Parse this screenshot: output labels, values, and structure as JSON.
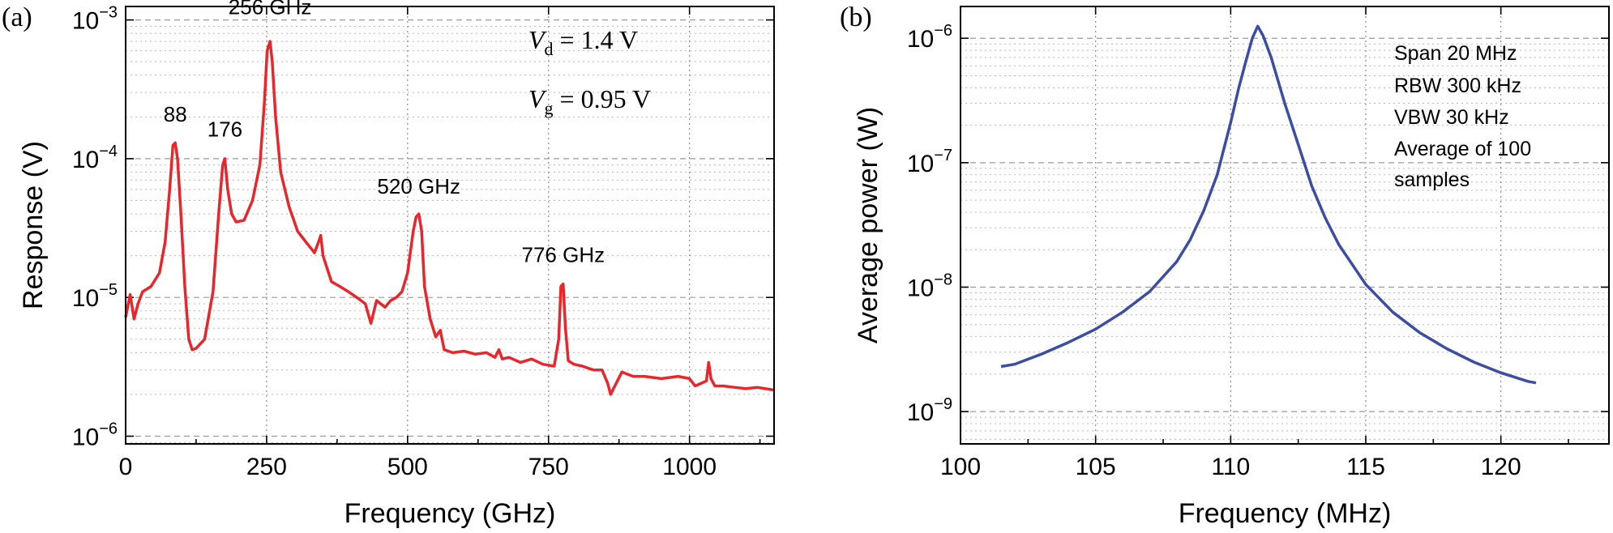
{
  "chart_data": [
    {
      "panel": "(a)",
      "type": "line",
      "title": "",
      "xlabel": "Frequency (GHz)",
      "ylabel": "Response (V)",
      "yscale": "log",
      "xlim": [
        0,
        1150
      ],
      "ylim": [
        8.8e-07,
        0.00125
      ],
      "x_ticks": [
        0,
        250,
        500,
        750,
        1000
      ],
      "x_tick_labels": [
        "0",
        "250",
        "500",
        "750",
        "1000"
      ],
      "y_ticks": [
        1e-06,
        1e-05,
        0.0001,
        0.001
      ],
      "y_tick_labels": [
        {
          "base": "10",
          "exp": "−6"
        },
        {
          "base": "10",
          "exp": "−5"
        },
        {
          "base": "10",
          "exp": "−4"
        },
        {
          "base": "10",
          "exp": "−3"
        }
      ],
      "color": "#e8262b",
      "series": [
        {
          "name": "Response",
          "x": [
            0,
            8,
            15,
            22,
            30,
            45,
            60,
            70,
            78,
            84,
            88,
            92,
            98,
            105,
            112,
            118,
            125,
            140,
            155,
            165,
            172,
            176,
            181,
            188,
            196,
            210,
            225,
            238,
            246,
            251,
            256,
            260,
            266,
            275,
            290,
            305,
            320,
            335,
            342,
            346,
            350,
            365,
            380,
            395,
            410,
            425,
            435,
            445,
            460,
            470,
            480,
            490,
            500,
            510,
            515,
            520,
            525,
            530,
            540,
            550,
            558,
            565,
            580,
            600,
            620,
            640,
            655,
            662,
            668,
            680,
            700,
            720,
            740,
            760,
            768,
            772,
            776,
            780,
            785,
            795,
            810,
            830,
            845,
            855,
            860,
            880,
            900,
            920,
            950,
            980,
            1000,
            1010,
            1020,
            1030,
            1034,
            1038,
            1045,
            1060,
            1080,
            1100,
            1120,
            1150
          ],
          "y": [
            7.2e-06,
            1.05e-05,
            7e-06,
            9e-06,
            1.1e-05,
            1.2e-05,
            1.5e-05,
            2.5e-05,
            6e-05,
            0.000125,
            0.00013,
            0.0001,
            4e-05,
            1.2e-05,
            5e-06,
            4.2e-06,
            4.3e-06,
            5e-06,
            1.1e-05,
            4e-05,
            9e-05,
            0.0001,
            6e-05,
            4e-05,
            3.5e-05,
            3.6e-05,
            5e-05,
            9e-05,
            0.00025,
            0.0006,
            0.0007,
            0.0005,
            0.0002,
            8e-05,
            4.5e-05,
            3e-05,
            2.5e-05,
            2.1e-05,
            2.5e-05,
            2.8e-05,
            2e-05,
            1.3e-05,
            1.2e-05,
            1.1e-05,
            1e-05,
            9e-06,
            6.5e-06,
            9.5e-06,
            8.5e-06,
            9.5e-06,
            1e-05,
            1.1e-05,
            1.5e-05,
            3e-05,
            3.8e-05,
            4e-05,
            3e-05,
            1.2e-05,
            7e-06,
            5.2e-06,
            5.8e-06,
            4.2e-06,
            4e-06,
            4.1e-06,
            3.9e-06,
            4e-06,
            3.7e-06,
            4.2e-06,
            3.6e-06,
            3.7e-06,
            3.4e-06,
            3.6e-06,
            3.3e-06,
            3.2e-06,
            5e-06,
            1.2e-05,
            1.25e-05,
            6e-06,
            3.5e-06,
            3.3e-06,
            3.2e-06,
            3e-06,
            3e-06,
            2.4e-06,
            2e-06,
            2.9e-06,
            2.7e-06,
            2.7e-06,
            2.6e-06,
            2.7e-06,
            2.6e-06,
            2.3e-06,
            2.4e-06,
            2.5e-06,
            3.4e-06,
            2.6e-06,
            2.3e-06,
            2.3e-06,
            2.25e-06,
            2.2e-06,
            2.25e-06,
            2.15e-06
          ]
        }
      ],
      "annotations": [
        {
          "text": "88",
          "x": 88,
          "y": 0.000185
        },
        {
          "text": "176",
          "x": 176,
          "y": 0.000145
        },
        {
          "text": "256 GHz",
          "x": 256,
          "y": 0.0011
        },
        {
          "text": "520 GHz",
          "x": 520,
          "y": 5.6e-05
        },
        {
          "text": "776 GHz",
          "x": 776,
          "y": 1.8e-05
        }
      ],
      "conditions": [
        {
          "symbol": "V",
          "sub": "d",
          "rest": " = 1.4 V"
        },
        {
          "symbol": "V",
          "sub": "g",
          "rest": " = 0.95 V"
        }
      ]
    },
    {
      "panel": "(b)",
      "type": "line",
      "title": "",
      "xlabel": "Frequency (MHz)",
      "ylabel": "Average power (W)",
      "yscale": "log",
      "xlim": [
        100,
        124
      ],
      "ylim": [
        5.5e-10,
        1.8e-06
      ],
      "x_ticks": [
        100,
        105,
        110,
        115,
        120
      ],
      "x_tick_labels": [
        "100",
        "105",
        "110",
        "115",
        "120"
      ],
      "y_ticks": [
        1e-09,
        1e-08,
        1e-07,
        1e-06
      ],
      "y_tick_labels": [
        {
          "base": "10",
          "exp": "−9"
        },
        {
          "base": "10",
          "exp": "−8"
        },
        {
          "base": "10",
          "exp": "−7"
        },
        {
          "base": "10",
          "exp": "−6"
        }
      ],
      "color": "#3b4ea3",
      "series": [
        {
          "name": "Average power",
          "x": [
            101.5,
            102,
            103,
            104,
            105,
            106,
            107,
            108,
            108.5,
            109,
            109.5,
            110,
            110.3,
            110.6,
            110.8,
            111,
            111.2,
            111.5,
            112,
            112.5,
            113,
            113.5,
            114,
            115,
            116,
            117,
            118,
            119,
            120,
            121,
            121.3
          ],
          "y": [
            2.3e-09,
            2.4e-09,
            2.9e-09,
            3.6e-09,
            4.6e-09,
            6.3e-09,
            9.2e-09,
            1.6e-08,
            2.4e-08,
            4.1e-08,
            8e-08,
            2.1e-07,
            4e-07,
            7e-07,
            1e-06,
            1.25e-06,
            1.05e-06,
            7e-07,
            3e-07,
            1.4e-07,
            6.5e-08,
            3.6e-08,
            2.2e-08,
            1.05e-08,
            6.3e-09,
            4.3e-09,
            3.2e-09,
            2.5e-09,
            2.05e-09,
            1.75e-09,
            1.7e-09
          ]
        }
      ],
      "info_lines": [
        "Span 20 MHz",
        "RBW 300 kHz",
        "VBW 30 kHz",
        "Average of 100",
        "samples"
      ]
    }
  ]
}
